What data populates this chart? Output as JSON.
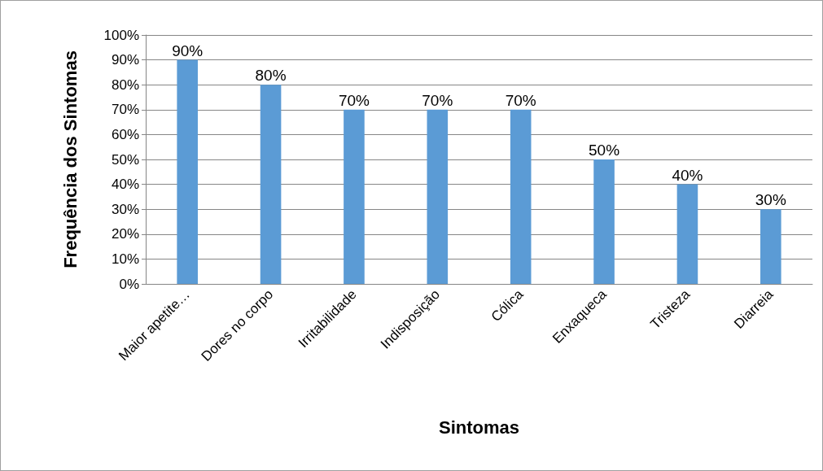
{
  "chart_data": {
    "type": "bar",
    "xlabel": "Sintomas",
    "ylabel": "Frequência dos Sintomas",
    "categories": [
      "Maior apetite…",
      "Dores no corpo",
      "Irritabilidade",
      "Indisposição",
      "Cólica",
      "Enxaqueca",
      "Tristeza",
      "Diarreia"
    ],
    "values": [
      90,
      80,
      70,
      70,
      70,
      50,
      40,
      30
    ],
    "value_labels": [
      "90%",
      "80%",
      "70%",
      "70%",
      "70%",
      "50%",
      "40%",
      "30%"
    ],
    "color": "#5b9bd5",
    "ylim": [
      0,
      100
    ],
    "yticks": [
      {
        "value": 0,
        "label": "0%"
      },
      {
        "value": 10,
        "label": "10%"
      },
      {
        "value": 20,
        "label": "20%"
      },
      {
        "value": 30,
        "label": "30%"
      },
      {
        "value": 40,
        "label": "40%"
      },
      {
        "value": 50,
        "label": "50%"
      },
      {
        "value": 60,
        "label": "60%"
      },
      {
        "value": 70,
        "label": "70%"
      },
      {
        "value": 80,
        "label": "80%"
      },
      {
        "value": 90,
        "label": "90%"
      },
      {
        "value": 100,
        "label": "100%"
      }
    ],
    "grid": "y"
  }
}
